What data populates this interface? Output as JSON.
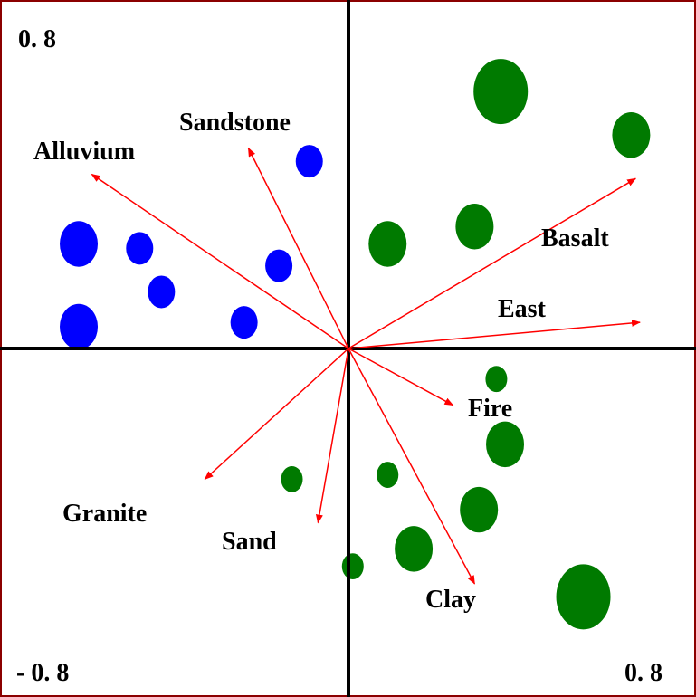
{
  "chart_data": {
    "type": "scatter",
    "title": "",
    "xlabel": "",
    "ylabel": "",
    "xlim": [
      -0.8,
      0.8
    ],
    "ylim": [
      -0.8,
      0.8
    ],
    "corner_labels": {
      "top_left": "0. 8",
      "bottom_left": "- 0. 8",
      "bottom_right": "0. 8"
    },
    "colors": {
      "frame": "#8b0000",
      "axes": "#000000",
      "arrow": "#ff0000",
      "group_a": "#0000ff",
      "group_b": "#007a00"
    },
    "vectors": [
      {
        "label": "Alluvium",
        "x": -0.59,
        "y": 0.4
      },
      {
        "label": "Sandstone",
        "x": -0.23,
        "y": 0.46
      },
      {
        "label": "Basalt",
        "x": 0.66,
        "y": 0.39
      },
      {
        "label": "East",
        "x": 0.67,
        "y": 0.06
      },
      {
        "label": "Fire",
        "x": 0.24,
        "y": -0.13
      },
      {
        "label": "Granite",
        "x": -0.33,
        "y": -0.3
      },
      {
        "label": "Sand",
        "x": -0.07,
        "y": -0.4
      },
      {
        "label": "Clay",
        "x": 0.29,
        "y": -0.54
      }
    ],
    "points": [
      {
        "group": "a",
        "x": -0.62,
        "y": 0.24,
        "size": 3
      },
      {
        "group": "a",
        "x": -0.62,
        "y": 0.05,
        "size": 3
      },
      {
        "group": "a",
        "x": -0.48,
        "y": 0.23,
        "size": 2
      },
      {
        "group": "a",
        "x": -0.43,
        "y": 0.13,
        "size": 2
      },
      {
        "group": "a",
        "x": -0.16,
        "y": 0.19,
        "size": 2
      },
      {
        "group": "a",
        "x": -0.24,
        "y": 0.06,
        "size": 2
      },
      {
        "group": "a",
        "x": -0.09,
        "y": 0.43,
        "size": 2
      },
      {
        "group": "b",
        "x": 0.35,
        "y": 0.59,
        "size": 4
      },
      {
        "group": "b",
        "x": 0.65,
        "y": 0.49,
        "size": 3
      },
      {
        "group": "b",
        "x": 0.29,
        "y": 0.28,
        "size": 3
      },
      {
        "group": "b",
        "x": 0.09,
        "y": 0.24,
        "size": 3
      },
      {
        "group": "b",
        "x": 0.34,
        "y": -0.07,
        "size": 1
      },
      {
        "group": "b",
        "x": 0.36,
        "y": -0.22,
        "size": 3
      },
      {
        "group": "b",
        "x": 0.3,
        "y": -0.37,
        "size": 3
      },
      {
        "group": "b",
        "x": 0.09,
        "y": -0.29,
        "size": 1
      },
      {
        "group": "b",
        "x": -0.13,
        "y": -0.3,
        "size": 1
      },
      {
        "group": "b",
        "x": 0.15,
        "y": -0.46,
        "size": 3
      },
      {
        "group": "b",
        "x": 0.01,
        "y": -0.5,
        "size": 1
      },
      {
        "group": "b",
        "x": 0.54,
        "y": -0.57,
        "size": 4
      }
    ]
  }
}
